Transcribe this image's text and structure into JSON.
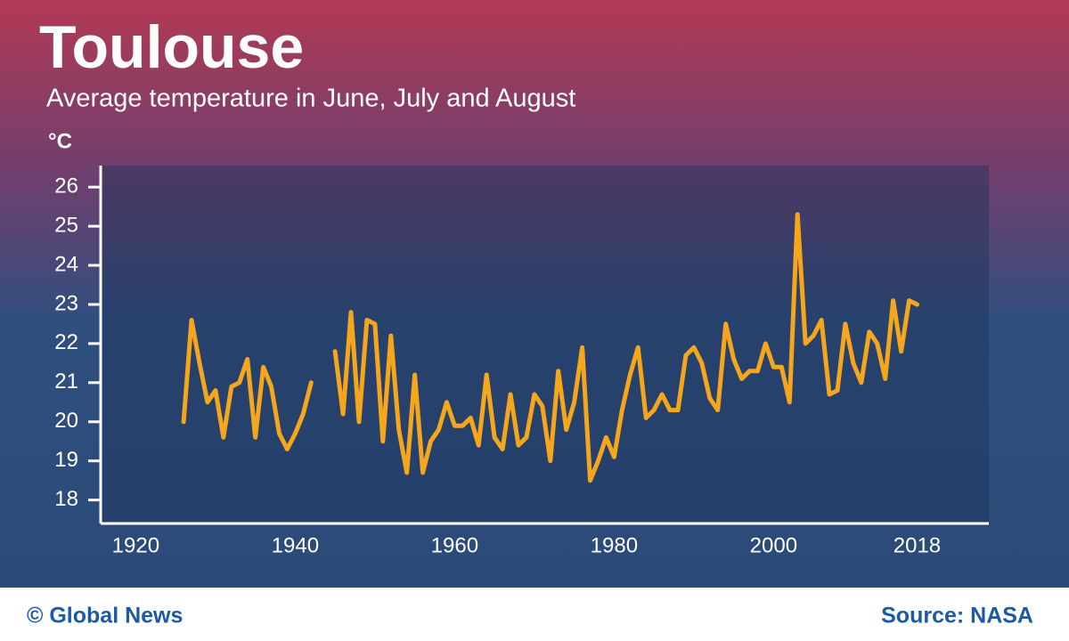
{
  "chart_data": {
    "type": "line",
    "title": "Toulouse",
    "subtitle": "Average temperature in June, July and August",
    "y_label": "°C",
    "credit": "© Global News",
    "source": "Source: NASA",
    "x": [
      1926,
      1927,
      1928,
      1929,
      1930,
      1931,
      1932,
      1933,
      1934,
      1935,
      1936,
      1937,
      1938,
      1939,
      1940,
      1941,
      1942,
      1943,
      1944,
      1945,
      1946,
      1947,
      1948,
      1949,
      1950,
      1951,
      1952,
      1953,
      1954,
      1955,
      1956,
      1957,
      1958,
      1959,
      1960,
      1961,
      1962,
      1963,
      1964,
      1965,
      1966,
      1967,
      1968,
      1969,
      1970,
      1971,
      1972,
      1973,
      1974,
      1975,
      1976,
      1977,
      1978,
      1979,
      1980,
      1981,
      1982,
      1983,
      1984,
      1985,
      1986,
      1987,
      1988,
      1989,
      1990,
      1991,
      1992,
      1993,
      1994,
      1995,
      1996,
      1997,
      1998,
      1999,
      2000,
      2001,
      2002,
      2003,
      2004,
      2005,
      2006,
      2007,
      2008,
      2009,
      2010,
      2011,
      2012,
      2013,
      2014,
      2015,
      2016,
      2017,
      2018
    ],
    "series": [
      {
        "name": "Average temperature",
        "color": "#f5a61b",
        "values": [
          20.0,
          22.6,
          21.5,
          20.5,
          20.8,
          19.6,
          20.9,
          21.0,
          21.6,
          19.6,
          21.4,
          20.9,
          19.7,
          19.3,
          19.7,
          20.2,
          21.0,
          null,
          null,
          21.8,
          20.2,
          22.8,
          20.0,
          22.6,
          22.5,
          19.5,
          22.2,
          19.8,
          18.7,
          21.2,
          18.7,
          19.5,
          19.8,
          20.5,
          19.9,
          19.9,
          20.1,
          19.4,
          21.2,
          19.6,
          19.3,
          20.7,
          19.4,
          19.6,
          20.7,
          20.4,
          19.0,
          21.3,
          19.8,
          20.5,
          21.9,
          18.5,
          19.0,
          19.6,
          19.1,
          20.3,
          21.2,
          21.9,
          20.1,
          20.3,
          20.7,
          20.3,
          20.3,
          21.7,
          21.9,
          21.5,
          20.6,
          20.3,
          22.5,
          21.6,
          21.1,
          21.3,
          21.3,
          22.0,
          21.4,
          21.4,
          20.5,
          25.3,
          22.0,
          22.2,
          22.6,
          20.7,
          20.8,
          22.5,
          21.5,
          21.0,
          22.3,
          22.0,
          21.1,
          23.1,
          21.8,
          23.1,
          23.0
        ]
      }
    ],
    "xlim": [
      1915.6,
      2027
    ],
    "ylim": [
      17.4,
      26.55
    ],
    "xticks": [
      1920,
      1940,
      1960,
      1980,
      2000,
      2018
    ],
    "yticks": [
      18,
      19,
      20,
      21,
      22,
      23,
      24,
      25,
      26
    ]
  }
}
